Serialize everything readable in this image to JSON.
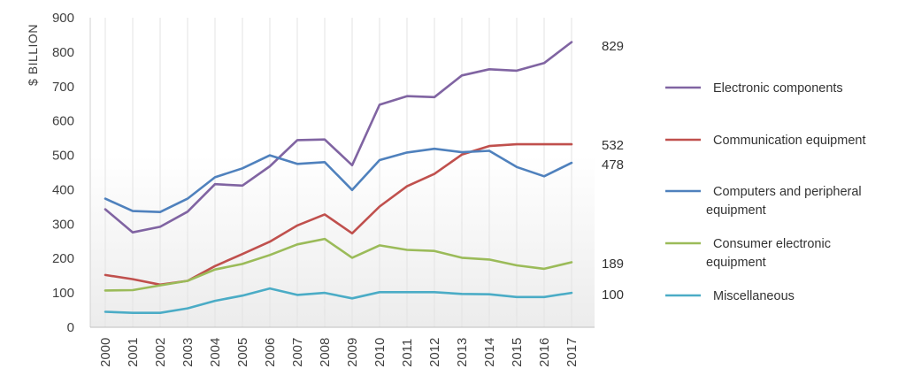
{
  "chart_data": {
    "type": "line",
    "ylabel": "$ BILLION",
    "ylim": [
      0,
      900
    ],
    "yticks": [
      "0",
      "100",
      "200",
      "300",
      "400",
      "500",
      "600",
      "700",
      "800",
      "900"
    ],
    "x": [
      "2000",
      "2001",
      "2002",
      "2003",
      "2004",
      "2005",
      "2006",
      "2007",
      "2008",
      "2009",
      "2010",
      "2011",
      "2012",
      "2013",
      "2014",
      "2015",
      "2016",
      "2017"
    ],
    "grid": "vertical",
    "legend_position": "right",
    "series": [
      {
        "name": "Electronic components",
        "legend_lines": [
          "Electronic components"
        ],
        "color": "#8064a2",
        "values": [
          343,
          276,
          292,
          336,
          416,
          412,
          468,
          544,
          546,
          471,
          647,
          672,
          669,
          732,
          750,
          746,
          768,
          829
        ],
        "end_label": "829"
      },
      {
        "name": "Communication equipment",
        "legend_lines": [
          "Communication equipment"
        ],
        "color": "#c0504d",
        "values": [
          152,
          140,
          124,
          135,
          178,
          213,
          249,
          296,
          328,
          273,
          351,
          410,
          446,
          502,
          527,
          532,
          532,
          532
        ],
        "end_label": "532"
      },
      {
        "name": "Computers and peripheral equipment",
        "legend_lines": [
          "Computers and peripheral",
          "equipment"
        ],
        "color": "#4f81bd",
        "values": [
          374,
          338,
          335,
          374,
          436,
          462,
          500,
          475,
          480,
          399,
          486,
          508,
          519,
          509,
          513,
          466,
          439,
          478
        ],
        "end_label": "478"
      },
      {
        "name": "Consumer electronic equipment",
        "legend_lines": [
          "Consumer electronic",
          "equipment"
        ],
        "color": "#9bbb59",
        "values": [
          107,
          108,
          122,
          135,
          168,
          184,
          210,
          241,
          257,
          202,
          238,
          225,
          222,
          202,
          197,
          180,
          170,
          189
        ],
        "end_label": "189"
      },
      {
        "name": "Miscellaneous",
        "legend_lines": [
          "Miscellaneous"
        ],
        "color": "#4bacc6",
        "values": [
          45,
          42,
          42,
          55,
          77,
          92,
          113,
          94,
          100,
          84,
          102,
          102,
          102,
          97,
          96,
          88,
          88,
          100
        ],
        "end_label": "100"
      }
    ]
  }
}
